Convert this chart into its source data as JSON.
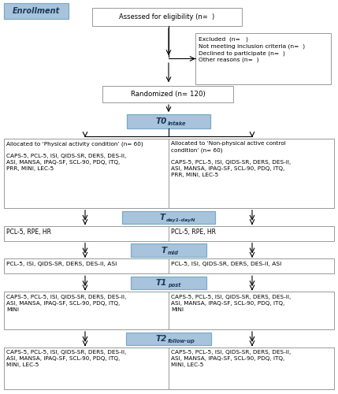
{
  "enrollment_label": "Enrollment",
  "blue_box_color": "#a8c4dc",
  "blue_box_edge": "#7aaac8",
  "blue_box_text_color": "#1a3a5c",
  "fig_bg": "#ffffff",
  "border_color": "#999999",
  "box_assessed": "Assessed for eligibility (n=  )",
  "box_excluded_title": "Excluded  (n=   )",
  "box_excluded_lines": [
    "Not meeting inclusion criteria (n=  )",
    "Declined to participate (n=  )",
    "Other reasons (n=  )"
  ],
  "box_randomized": "Randomized (n= 120)",
  "t0_label": "T0",
  "t0_sub": "Intake",
  "box_left_t0_l1": "Allocated to ‘Physical activity condition’ (n= 60)",
  "box_left_t0_meas": "CAPS-5, PCL-5, ISI, QIDS-SR, DERS, DES-II,\nASI, MANSA, IPAQ-SF, SCL-90, PDQ, ITQ,\nPRR, MINI, LEC-5",
  "box_right_t0_l1": "Allocated to ‘Non-physical active control",
  "box_right_t0_l2": "condition’ (n= 60)",
  "box_right_t0_meas": "CAPS-5, PCL-5, ISI, QIDS-SR, DERS, DES-II,\nASI, MANSA, IPAQ-SF, SCL-90, PDQ, ITQ,\nPRR, MINI, LEC-5",
  "tday_label": "T",
  "tday_sub": "day1-dayN",
  "box_left_day": "PCL-5, RPE, HR",
  "box_right_day": "PCL-5, RPE, HR",
  "tmid_label": "T",
  "tmid_sub": "mid",
  "box_left_mid": "PCL-5, ISI, QIDS-SR, DERS, DES-II, ASI",
  "box_right_mid": "PCL-5, ISI, QIDS-SR, DERS, DES-II, ASI",
  "t1_label": "T1",
  "t1_sub": "post",
  "box_left_t1_meas": "CAPS-5, PCL-5, ISI, QIDS-SR, DERS, DES-II,\nASI, MANSA, IPAQ-SF, SCL-90, PDQ, ITQ,\nMINI",
  "box_right_t1_meas": "CAPS-5, PCL-5, ISI, QIDS-SR, DERS, DES-II,\nASI, MANSA, IPAQ-SF, SCL-90, PDQ, ITQ,\nMINI",
  "t2_label": "T2",
  "t2_sub": "follow-up",
  "box_left_t2_meas": "CAPS-5, PCL-5, ISI, QIDS-SR, DERS, DES-II,\nASI, MANSA, IPAQ-SF, SCL-90, PDQ, ITQ,\nMINI, LEC-5",
  "box_right_t2_meas": "CAPS-5, PCL-5, ISI, QIDS-SR, DERS, DES-II,\nASI, MANSA, IPAQ-SF, SCL-90, PDQ, ITQ,\nMINI, LEC-5"
}
